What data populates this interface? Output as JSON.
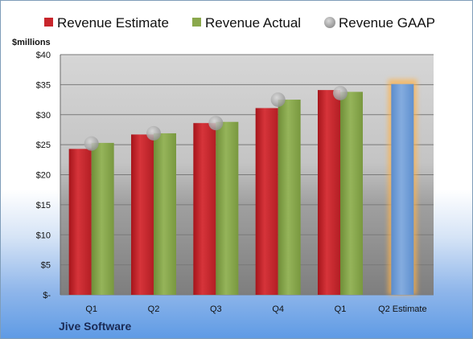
{
  "chart_data": {
    "type": "bar",
    "ylabel": "$millions",
    "ylim": [
      0,
      40
    ],
    "yticks": [
      0,
      5,
      10,
      15,
      20,
      25,
      30,
      35,
      40
    ],
    "ytick_labels": [
      "$-",
      "$5",
      "$10",
      "$15",
      "$20",
      "$25",
      "$30",
      "$35",
      "$40"
    ],
    "categories": [
      "Q1",
      "Q2",
      "Q3",
      "Q4",
      "Q1",
      "Q2 Estimate"
    ],
    "series": [
      {
        "name": "Revenue Estimate",
        "kind": "bar",
        "color": "#c8262c",
        "values": [
          24.3,
          26.7,
          28.6,
          31.1,
          34.1,
          null
        ]
      },
      {
        "name": "Revenue Actual",
        "kind": "bar",
        "color": "#8aa84c",
        "values": [
          25.3,
          26.9,
          28.8,
          32.5,
          33.8,
          null
        ]
      },
      {
        "name": "Revenue GAAP",
        "kind": "marker",
        "color": "#a6a6a6",
        "values": [
          25.2,
          26.9,
          28.6,
          32.5,
          33.6,
          null
        ]
      },
      {
        "name": "Q2 Estimate",
        "kind": "bar",
        "color": "#6f9fd8",
        "values": [
          null,
          null,
          null,
          null,
          null,
          35.1
        ]
      }
    ],
    "legend": "top",
    "grid": true,
    "company": "Jive Software"
  }
}
